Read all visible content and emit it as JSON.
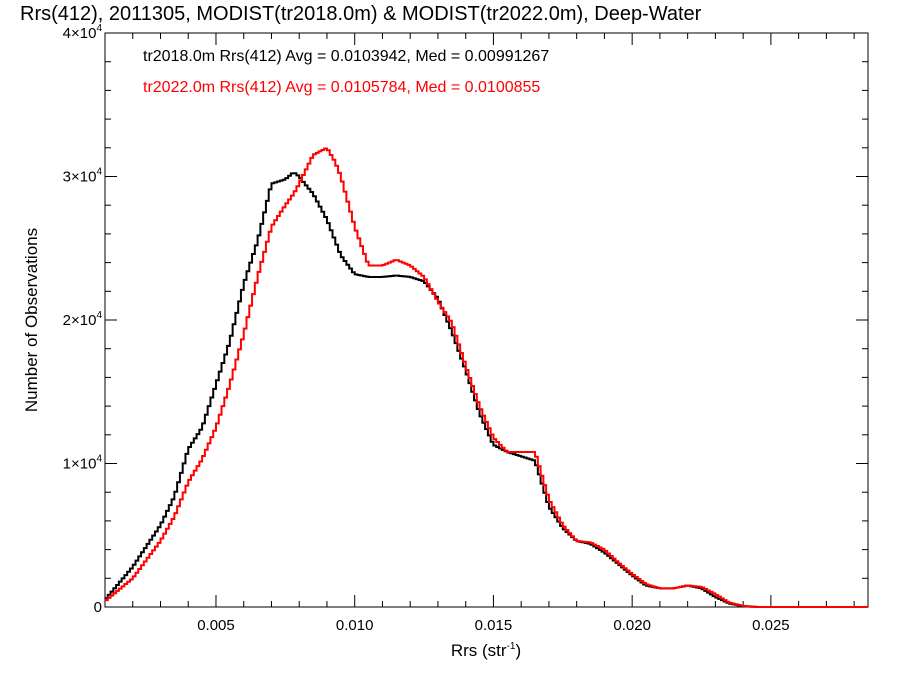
{
  "chart_data": {
    "type": "line",
    "title": "Rrs(412), 2011305, MODIST(tr2018.0m) & MODIST(tr2022.0m), Deep-Water",
    "xlabel": "Rrs (str",
    "xlabel_sup": "-1",
    "xlabel_tail": ")",
    "ylabel": "Number of Observations",
    "xlim": [
      0.001,
      0.0285
    ],
    "ylim": [
      0,
      40000
    ],
    "x_ticks": [
      {
        "value": 0.005,
        "label": "0.005"
      },
      {
        "value": 0.01,
        "label": "0.010"
      },
      {
        "value": 0.015,
        "label": "0.015"
      },
      {
        "value": 0.02,
        "label": "0.020"
      },
      {
        "value": 0.025,
        "label": "0.025"
      }
    ],
    "y_ticks": [
      {
        "value": 0,
        "label": "0",
        "sup": ""
      },
      {
        "value": 10000,
        "label": "1×10",
        "sup": "4"
      },
      {
        "value": 20000,
        "label": "2×10",
        "sup": "4"
      },
      {
        "value": 30000,
        "label": "3×10",
        "sup": "4"
      },
      {
        "value": 40000,
        "label": "4×10",
        "sup": "4"
      }
    ],
    "grid": false,
    "legend_position": "top-left",
    "series": [
      {
        "name": "tr2018.0m Rrs(412) Avg = 0.0103942, Med = 0.00991267",
        "color": "#000000",
        "x": [
          0.001,
          0.002,
          0.003,
          0.0035,
          0.004,
          0.0045,
          0.005,
          0.0055,
          0.006,
          0.0065,
          0.007,
          0.0075,
          0.0078,
          0.008,
          0.0082,
          0.0085,
          0.009,
          0.0095,
          0.01,
          0.0105,
          0.011,
          0.0115,
          0.012,
          0.0125,
          0.013,
          0.0135,
          0.014,
          0.0145,
          0.015,
          0.0155,
          0.016,
          0.0165,
          0.017,
          0.0175,
          0.018,
          0.0185,
          0.019,
          0.0195,
          0.02,
          0.0205,
          0.021,
          0.0215,
          0.022,
          0.0225,
          0.023,
          0.0235,
          0.024,
          0.0245,
          0.025,
          0.026,
          0.027,
          0.0285
        ],
        "values": [
          500,
          2800,
          5700,
          7700,
          11000,
          12500,
          15500,
          18500,
          22500,
          25500,
          29500,
          29800,
          30300,
          30000,
          29500,
          28800,
          27000,
          24500,
          23200,
          23000,
          23000,
          23100,
          23000,
          22700,
          21500,
          19200,
          16500,
          13500,
          11300,
          10800,
          10500,
          10200,
          7000,
          5500,
          4600,
          4400,
          3800,
          3000,
          2200,
          1500,
          1300,
          1300,
          1500,
          1300,
          700,
          250,
          60,
          0,
          0,
          0,
          0,
          0
        ]
      },
      {
        "name": "tr2022.0m Rrs(412) Avg = 0.0105784, Med = 0.0100855",
        "color": "#ff0000",
        "x": [
          0.001,
          0.002,
          0.003,
          0.0035,
          0.004,
          0.0045,
          0.005,
          0.0055,
          0.006,
          0.0065,
          0.007,
          0.0075,
          0.0078,
          0.008,
          0.0085,
          0.009,
          0.0093,
          0.0095,
          0.01,
          0.0105,
          0.011,
          0.0115,
          0.012,
          0.0125,
          0.013,
          0.0135,
          0.014,
          0.0145,
          0.015,
          0.0155,
          0.016,
          0.0165,
          0.017,
          0.0175,
          0.018,
          0.0185,
          0.019,
          0.0195,
          0.02,
          0.0205,
          0.021,
          0.0215,
          0.022,
          0.0225,
          0.023,
          0.0235,
          0.024,
          0.0245,
          0.025,
          0.026,
          0.027,
          0.0285
        ],
        "values": [
          400,
          2000,
          4600,
          6300,
          8700,
          10300,
          12500,
          15500,
          19000,
          23000,
          26500,
          28000,
          28800,
          29500,
          31500,
          32000,
          31000,
          30000,
          26500,
          23800,
          23800,
          24200,
          23800,
          23000,
          21300,
          19800,
          16800,
          14000,
          11800,
          10800,
          10800,
          10800,
          7500,
          5700,
          4600,
          4500,
          4000,
          3100,
          2300,
          1600,
          1300,
          1300,
          1500,
          1400,
          900,
          300,
          80,
          0,
          0,
          0,
          0,
          0
        ]
      }
    ]
  }
}
